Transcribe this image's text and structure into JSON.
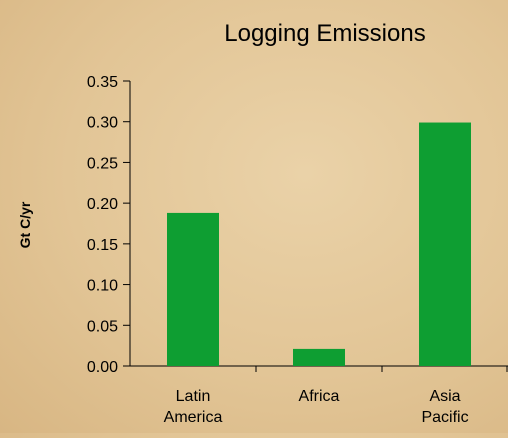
{
  "chart_data": {
    "type": "bar",
    "title": "Logging Emissions",
    "xlabel": "",
    "ylabel": "Gt C/yr",
    "categories": [
      [
        "Latin",
        "America"
      ],
      [
        "Africa"
      ],
      [
        "Asia",
        "Pacific"
      ]
    ],
    "values": [
      0.188,
      0.021,
      0.299
    ],
    "ylim": [
      0,
      0.35
    ],
    "yticks": [
      "0.00",
      "0.05",
      "0.10",
      "0.15",
      "0.20",
      "0.25",
      "0.30",
      "0.35"
    ],
    "bar_color": "#0e9e32",
    "grid": false,
    "legend": "none"
  }
}
